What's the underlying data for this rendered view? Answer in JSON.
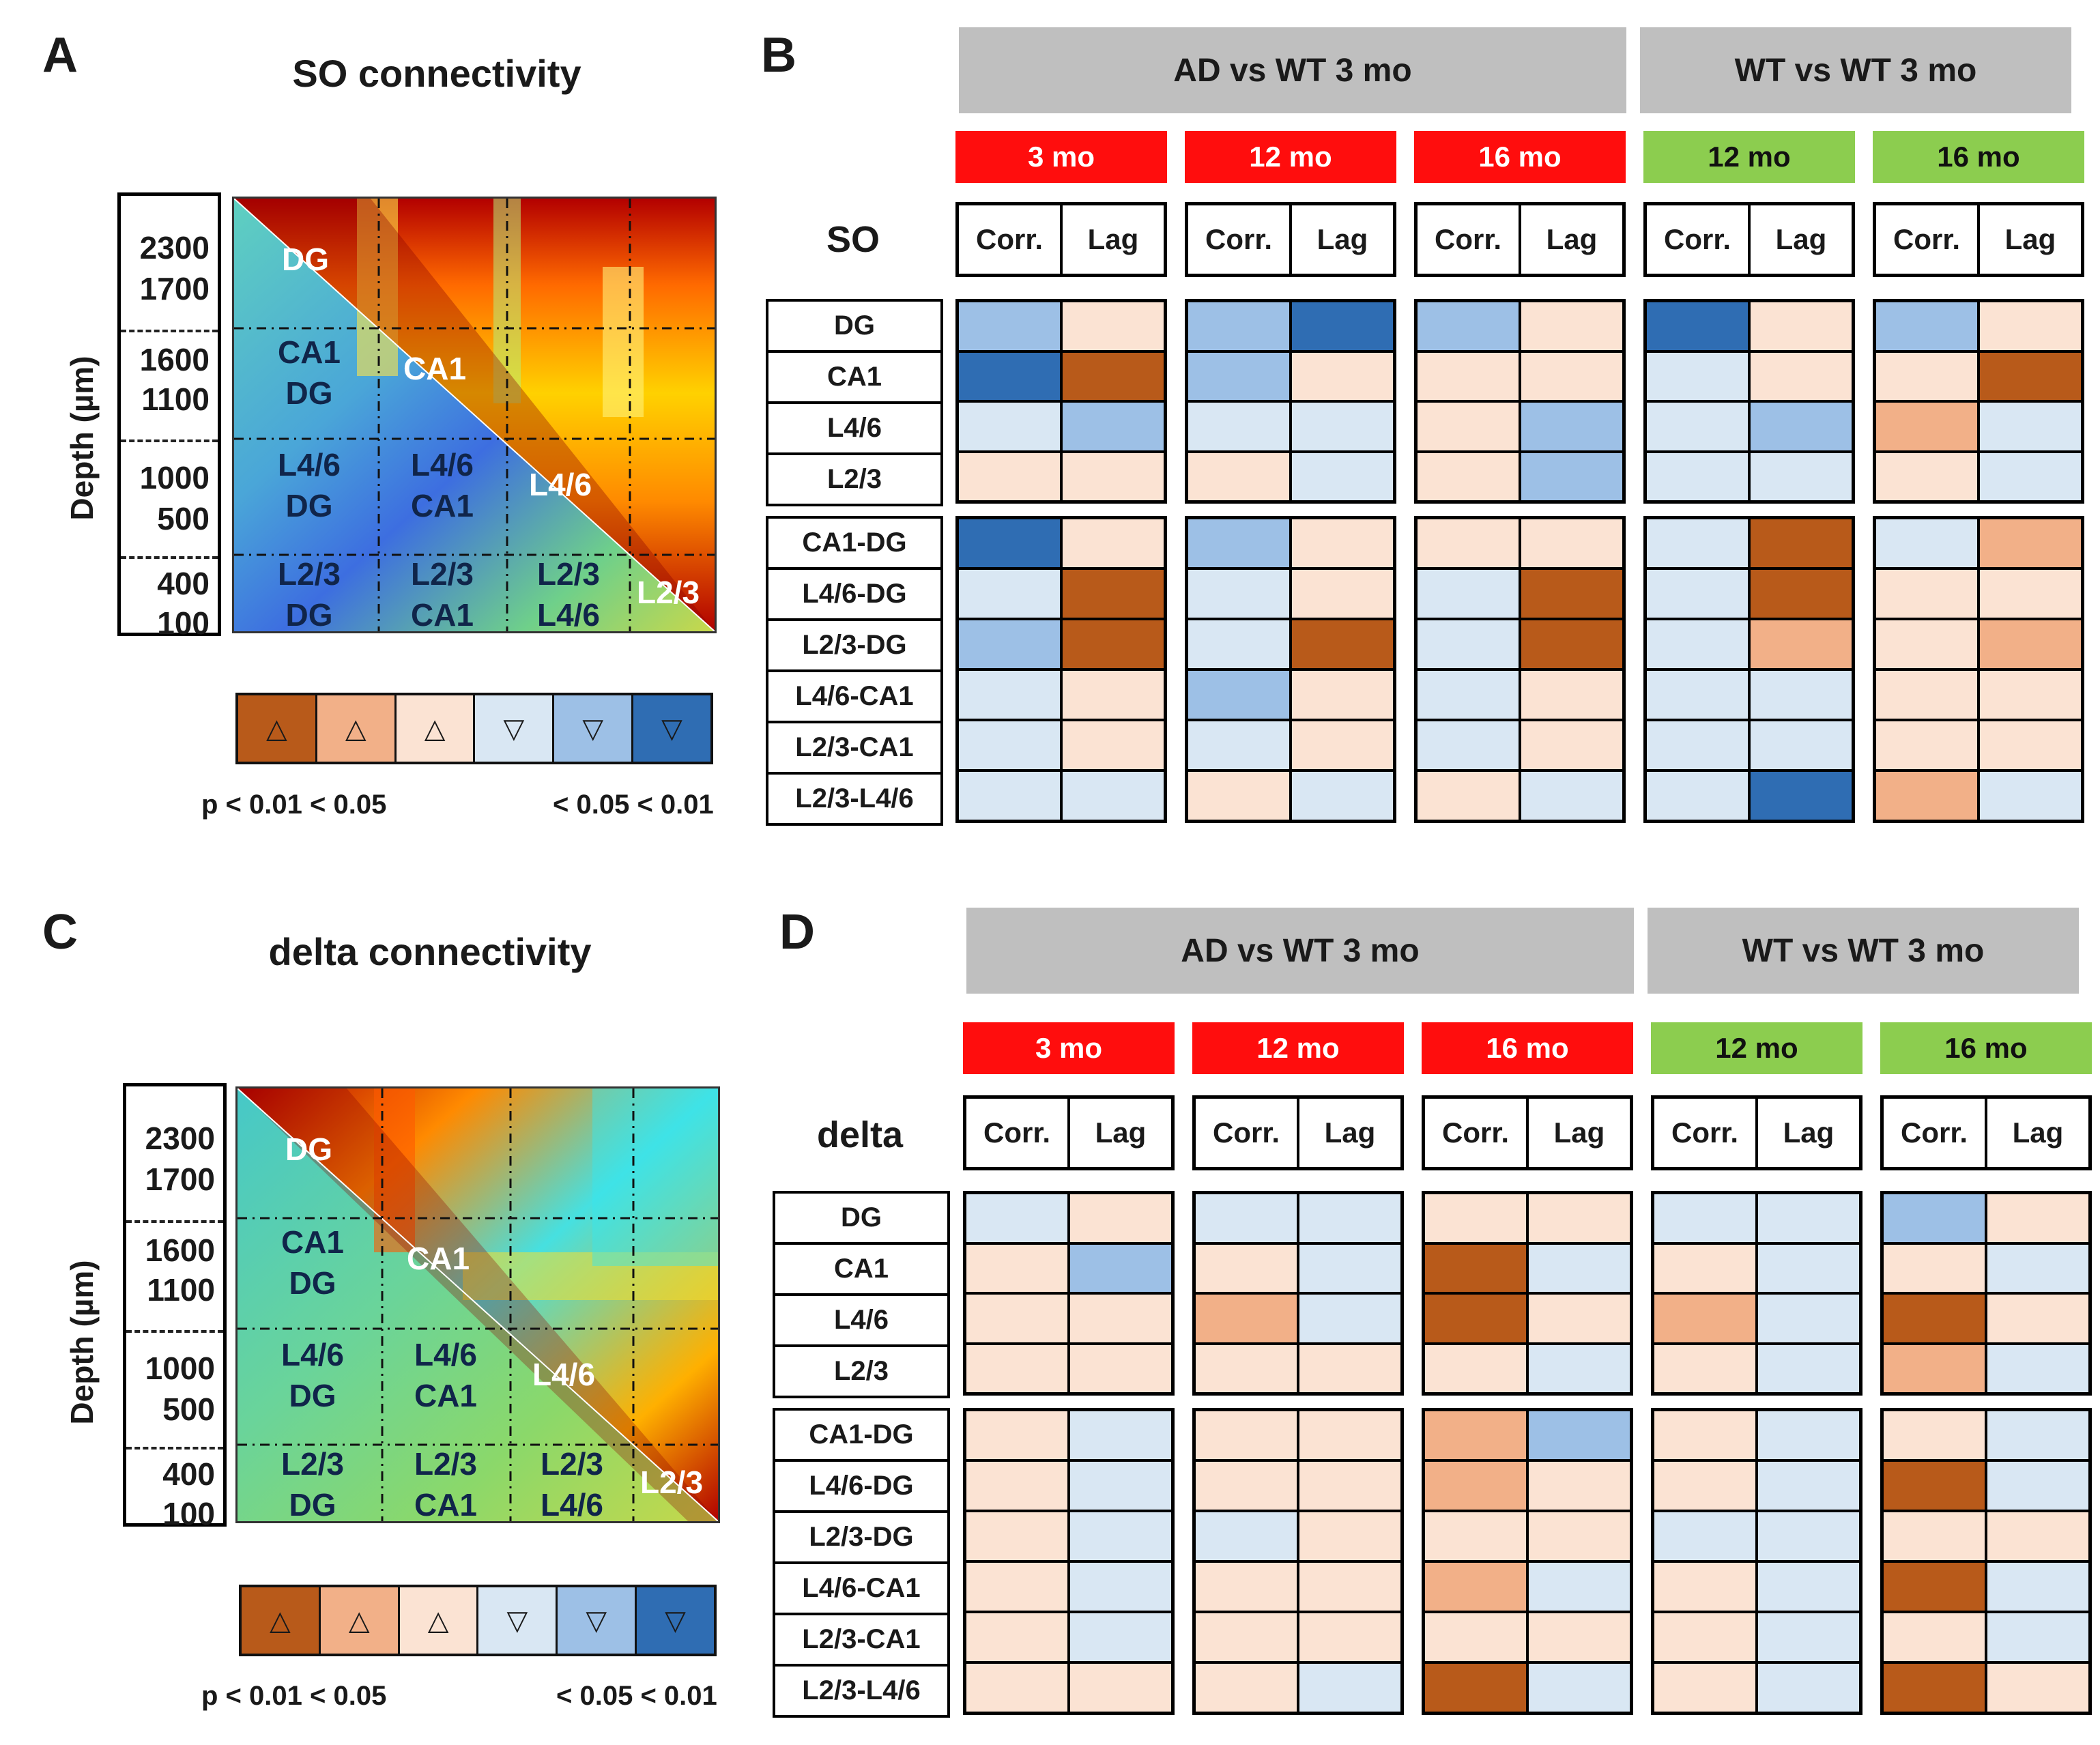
{
  "colors": {
    "cat_up_01": "#b85a1a",
    "cat_up_05": "#f2b088",
    "cat_up_ns": "#fbe3d3",
    "cat_dn_ns": "#d9e7f3",
    "cat_dn_05": "#9dc0e6",
    "cat_dn_01": "#2f6db3",
    "ad_age": "#ff0d0d",
    "wt_age": "#8ccd4f",
    "gray_header": "#bfbfbf"
  },
  "panel_A": {
    "letter": "A",
    "title": "SO connectivity",
    "ylabel": "Depth (µm)",
    "depths": [
      "2300",
      "1700",
      "1600",
      "1100",
      "1000",
      "500",
      "400",
      "100"
    ],
    "regions": {
      "ca1_dg": [
        "CA1",
        "DG"
      ],
      "l46_dg": [
        "L4/6",
        "DG"
      ],
      "l46_ca1": [
        "L4/6",
        "CA1"
      ],
      "l23_dg": [
        "L2/3",
        "DG"
      ],
      "l23_ca1": [
        "L2/3",
        "CA1"
      ],
      "l23_l46": [
        "L2/3",
        "L4/6"
      ]
    },
    "diagonal": [
      "DG",
      "CA1",
      "L4/6",
      "L2/3"
    ],
    "legend_symbols": [
      "△",
      "△",
      "△",
      "▽",
      "▽",
      "▽"
    ],
    "legend_left": "p < 0.01 < 0.05",
    "legend_right": "< 0.05 < 0.01"
  },
  "panel_C": {
    "letter": "C",
    "title": "delta connectivity",
    "ylabel": "Depth (µm)",
    "depths": [
      "2300",
      "1700",
      "1600",
      "1100",
      "1000",
      "500",
      "400",
      "100"
    ],
    "regions": {
      "ca1_dg": [
        "CA1",
        "DG"
      ],
      "l46_dg": [
        "L4/6",
        "DG"
      ],
      "l46_ca1": [
        "L4/6",
        "CA1"
      ],
      "l23_dg": [
        "L2/3",
        "DG"
      ],
      "l23_ca1": [
        "L2/3",
        "CA1"
      ],
      "l23_l46": [
        "L2/3",
        "L4/6"
      ]
    },
    "diagonal": [
      "DG",
      "CA1",
      "L4/6",
      "L2/3"
    ],
    "legend_symbols": [
      "△",
      "△",
      "△",
      "▽",
      "▽",
      "▽"
    ],
    "legend_left": "p < 0.01 < 0.05",
    "legend_right": "< 0.05 < 0.01"
  },
  "panel_B": {
    "letter": "B",
    "band": "SO",
    "header_ad": "AD vs WT 3 mo",
    "header_wt": "WT vs WT 3 mo",
    "ages": [
      "3 mo",
      "12 mo",
      "16 mo",
      "12 mo",
      "16 mo"
    ],
    "sub": [
      "Corr.",
      "Lag"
    ],
    "rows_top": [
      "DG",
      "CA1",
      "L4/6",
      "L2/3"
    ],
    "rows_bottom": [
      "CA1-DG",
      "L4/6-DG",
      "L2/3-DG",
      "L4/6-CA1",
      "L2/3-CA1",
      "L2/3-L4/6"
    ],
    "grid_top": [
      [
        [
          "dn05",
          "upns"
        ],
        [
          "dn05",
          "dn01"
        ],
        [
          "dn05",
          "upns"
        ],
        [
          "dn01",
          "upns"
        ],
        [
          "dn05",
          "upns"
        ]
      ],
      [
        [
          "dn01",
          "up01"
        ],
        [
          "dn05",
          "upns"
        ],
        [
          "upns",
          "upns"
        ],
        [
          "dnns",
          "upns"
        ],
        [
          "upns",
          "up01"
        ]
      ],
      [
        [
          "dnns",
          "dn05"
        ],
        [
          "dnns",
          "dnns"
        ],
        [
          "upns",
          "dn05"
        ],
        [
          "dnns",
          "dn05"
        ],
        [
          "up05",
          "dnns"
        ]
      ],
      [
        [
          "upns",
          "upns"
        ],
        [
          "upns",
          "dnns"
        ],
        [
          "upns",
          "dn05"
        ],
        [
          "dnns",
          "dnns"
        ],
        [
          "upns",
          "dnns"
        ]
      ]
    ],
    "grid_bottom": [
      [
        [
          "dn01",
          "upns"
        ],
        [
          "dn05",
          "upns"
        ],
        [
          "upns",
          "upns"
        ],
        [
          "dnns",
          "up01"
        ],
        [
          "dnns",
          "up05"
        ]
      ],
      [
        [
          "dnns",
          "up01"
        ],
        [
          "dnns",
          "upns"
        ],
        [
          "dnns",
          "up01"
        ],
        [
          "dnns",
          "up01"
        ],
        [
          "upns",
          "upns"
        ]
      ],
      [
        [
          "dn05",
          "up01"
        ],
        [
          "dnns",
          "up01"
        ],
        [
          "dnns",
          "up01"
        ],
        [
          "dnns",
          "up05"
        ],
        [
          "upns",
          "up05"
        ]
      ],
      [
        [
          "dnns",
          "upns"
        ],
        [
          "dn05",
          "upns"
        ],
        [
          "dnns",
          "upns"
        ],
        [
          "dnns",
          "dnns"
        ],
        [
          "upns",
          "upns"
        ]
      ],
      [
        [
          "dnns",
          "upns"
        ],
        [
          "dnns",
          "upns"
        ],
        [
          "dnns",
          "upns"
        ],
        [
          "dnns",
          "dnns"
        ],
        [
          "upns",
          "upns"
        ]
      ],
      [
        [
          "dnns",
          "dnns"
        ],
        [
          "upns",
          "dnns"
        ],
        [
          "upns",
          "dnns"
        ],
        [
          "dnns",
          "dn01"
        ],
        [
          "up05",
          "dnns"
        ]
      ]
    ]
  },
  "panel_D": {
    "letter": "D",
    "band": "delta",
    "header_ad": "AD vs WT 3 mo",
    "header_wt": "WT vs WT 3 mo",
    "ages": [
      "3 mo",
      "12 mo",
      "16 mo",
      "12 mo",
      "16 mo"
    ],
    "sub": [
      "Corr.",
      "Lag"
    ],
    "rows_top": [
      "DG",
      "CA1",
      "L4/6",
      "L2/3"
    ],
    "rows_bottom": [
      "CA1-DG",
      "L4/6-DG",
      "L2/3-DG",
      "L4/6-CA1",
      "L2/3-CA1",
      "L2/3-L4/6"
    ],
    "grid_top": [
      [
        [
          "dnns",
          "upns"
        ],
        [
          "dnns",
          "dnns"
        ],
        [
          "upns",
          "upns"
        ],
        [
          "dnns",
          "dnns"
        ],
        [
          "dn05",
          "upns"
        ]
      ],
      [
        [
          "upns",
          "dn05"
        ],
        [
          "upns",
          "dnns"
        ],
        [
          "up01",
          "dnns"
        ],
        [
          "upns",
          "dnns"
        ],
        [
          "upns",
          "dnns"
        ]
      ],
      [
        [
          "upns",
          "upns"
        ],
        [
          "up05",
          "dnns"
        ],
        [
          "up01",
          "upns"
        ],
        [
          "up05",
          "dnns"
        ],
        [
          "up01",
          "upns"
        ]
      ],
      [
        [
          "upns",
          "upns"
        ],
        [
          "upns",
          "upns"
        ],
        [
          "upns",
          "dnns"
        ],
        [
          "upns",
          "dnns"
        ],
        [
          "up05",
          "dnns"
        ]
      ]
    ],
    "grid_bottom": [
      [
        [
          "upns",
          "dnns"
        ],
        [
          "upns",
          "upns"
        ],
        [
          "up05",
          "dn05"
        ],
        [
          "upns",
          "dnns"
        ],
        [
          "upns",
          "dnns"
        ]
      ],
      [
        [
          "upns",
          "dnns"
        ],
        [
          "upns",
          "upns"
        ],
        [
          "up05",
          "upns"
        ],
        [
          "upns",
          "dnns"
        ],
        [
          "up01",
          "dnns"
        ]
      ],
      [
        [
          "upns",
          "dnns"
        ],
        [
          "dnns",
          "upns"
        ],
        [
          "upns",
          "upns"
        ],
        [
          "dnns",
          "dnns"
        ],
        [
          "upns",
          "upns"
        ]
      ],
      [
        [
          "upns",
          "dnns"
        ],
        [
          "upns",
          "upns"
        ],
        [
          "up05",
          "dnns"
        ],
        [
          "upns",
          "dnns"
        ],
        [
          "up01",
          "dnns"
        ]
      ],
      [
        [
          "upns",
          "dnns"
        ],
        [
          "upns",
          "upns"
        ],
        [
          "upns",
          "upns"
        ],
        [
          "upns",
          "dnns"
        ],
        [
          "upns",
          "dnns"
        ]
      ],
      [
        [
          "upns",
          "upns"
        ],
        [
          "upns",
          "dnns"
        ],
        [
          "up01",
          "dnns"
        ],
        [
          "upns",
          "dnns"
        ],
        [
          "up01",
          "upns"
        ]
      ]
    ]
  }
}
